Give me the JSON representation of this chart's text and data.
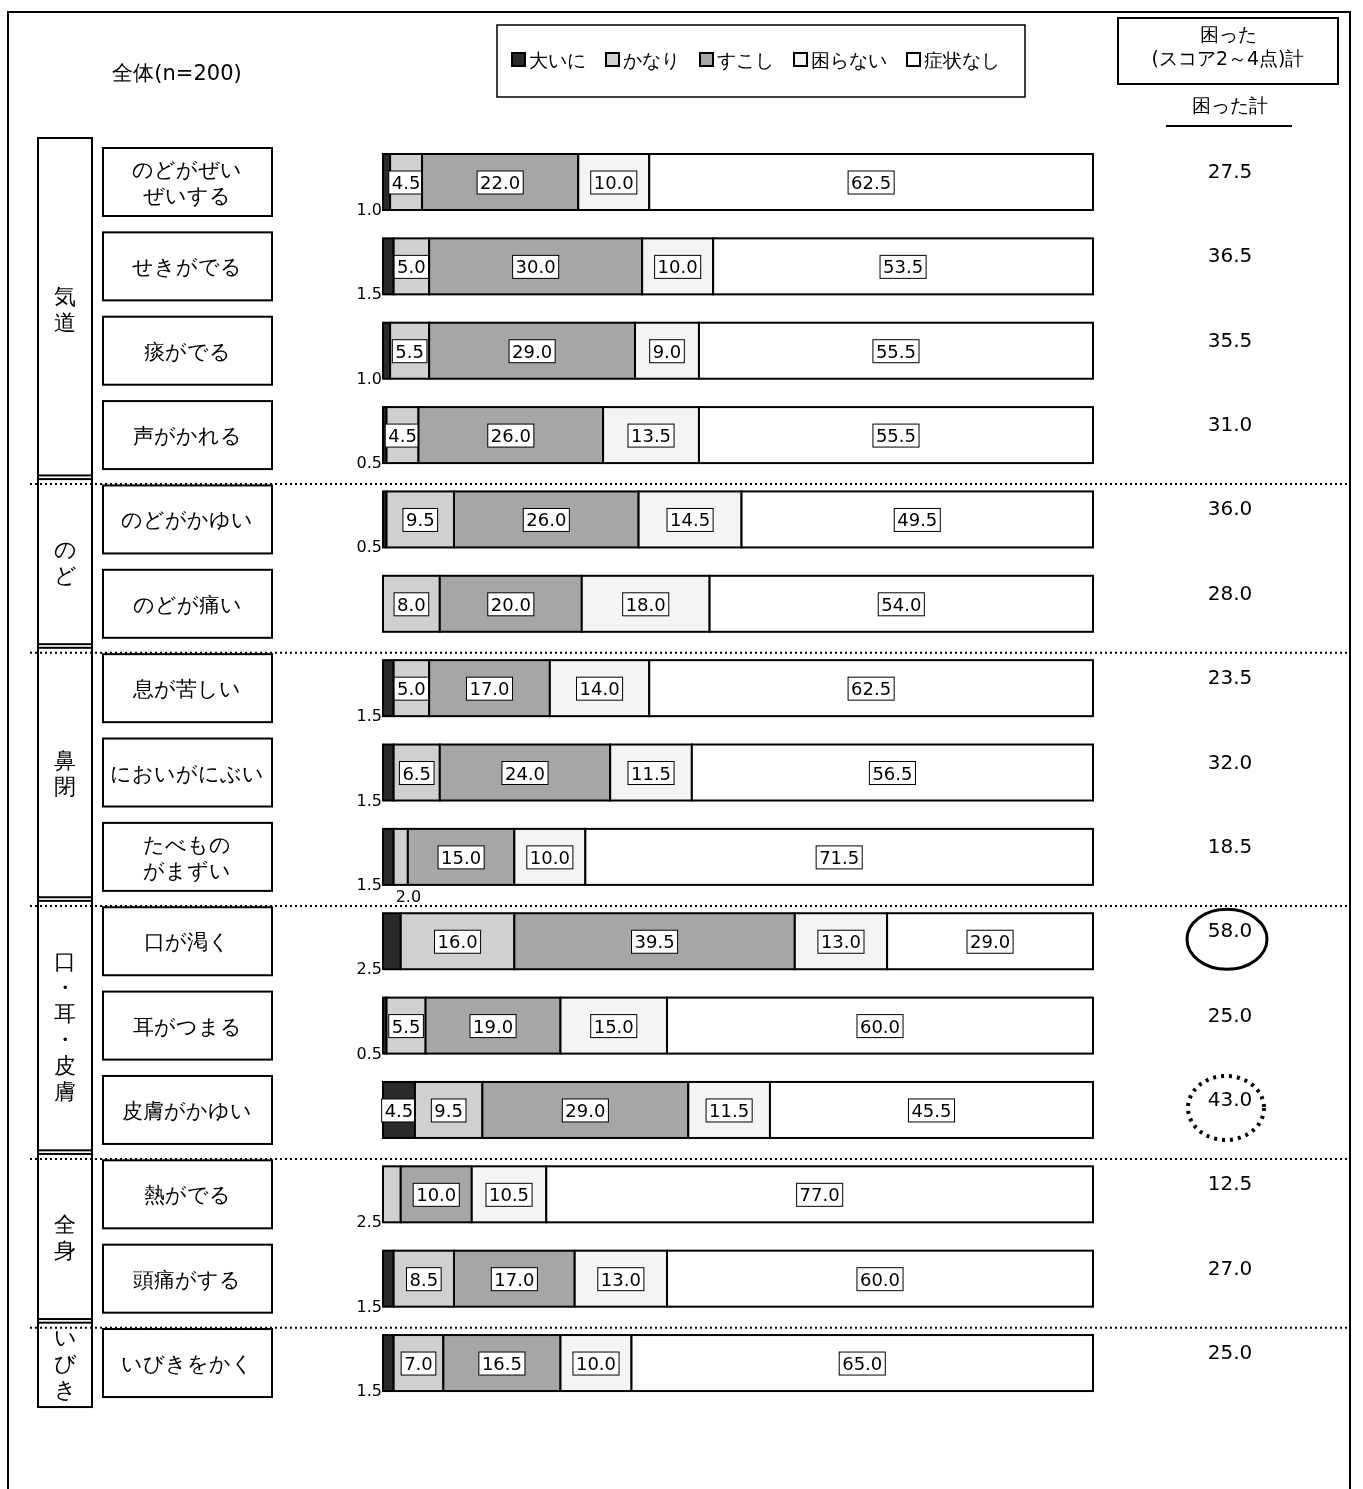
{
  "chart_data": {
    "type": "bar",
    "orientation": "horizontal",
    "stacked": true,
    "subtitle": "全体(n=200)",
    "legend": "top",
    "xlim": [
      0,
      100
    ],
    "categories": [
      "のどがぜいぜいする",
      "せきがでる",
      "痰がでる",
      "声がかれる",
      "のどがかゆい",
      "のどが痛い",
      "息が苦しい",
      "においがにぶい",
      "たべものがまずい",
      "口が渇く",
      "耳がつまる",
      "皮膚がかゆい",
      "熱がでる",
      "頭痛がする",
      "いびきをかく"
    ],
    "series": [
      {
        "name": "大いに",
        "color": "#2a2a2a",
        "values": [
          1.0,
          1.5,
          1.0,
          0.5,
          0.5,
          0,
          1.5,
          1.5,
          1.5,
          2.5,
          0.5,
          4.5,
          0,
          1.5,
          1.5
        ],
        "value_labels": [
          "1.0",
          "1.5",
          "1.0",
          "0.5",
          "0.5",
          null,
          "1.5",
          "1.5",
          "1.5",
          "2.5",
          "0.5",
          "4.5",
          null,
          "1.5",
          "1.5"
        ]
      },
      {
        "name": "かなり",
        "color": "#d0d0d0",
        "values": [
          4.5,
          5.0,
          5.5,
          4.5,
          9.5,
          8.0,
          5.0,
          6.5,
          2.0,
          16.0,
          5.5,
          9.5,
          2.5,
          8.5,
          7.0
        ],
        "value_labels": [
          "4.5",
          "5.0",
          "5.5",
          "4.5",
          "9.5",
          "8.0",
          "5.0",
          "6.5",
          "2.0",
          "16.0",
          "5.5",
          "9.5",
          "2.5",
          "8.5",
          "7.0"
        ]
      },
      {
        "name": "すこし",
        "color": "#a6a6a6",
        "values": [
          22.0,
          30.0,
          29.0,
          26.0,
          26.0,
          20.0,
          17.0,
          24.0,
          15.0,
          39.5,
          19.0,
          29.0,
          10.0,
          17.0,
          16.5
        ],
        "value_labels": [
          "22.0",
          "30.0",
          "29.0",
          "26.0",
          "26.0",
          "20.0",
          "17.0",
          "24.0",
          "15.0",
          "39.5",
          "19.0",
          "29.0",
          "10.0",
          "17.0",
          "16.5"
        ]
      },
      {
        "name": "困らない",
        "color": "#f4f4f4",
        "values": [
          10.0,
          10.0,
          9.0,
          13.5,
          14.5,
          18.0,
          14.0,
          11.5,
          10.0,
          13.0,
          15.0,
          11.5,
          10.5,
          13.0,
          10.0
        ],
        "value_labels": [
          "10.0",
          "10.0",
          "9.0",
          "13.5",
          "14.5",
          "18.0",
          "14.0",
          "11.5",
          "10.0",
          "13.0",
          "15.0",
          "11.5",
          "10.5",
          "13.0",
          "10.0"
        ]
      },
      {
        "name": "症状なし",
        "color": "#ffffff",
        "values": [
          62.5,
          53.5,
          55.5,
          55.5,
          49.5,
          54.0,
          62.5,
          56.5,
          71.5,
          29.0,
          60.0,
          45.5,
          77.0,
          60.0,
          65.0
        ],
        "value_labels": [
          "62.5",
          "53.5",
          "55.5",
          "55.5",
          "49.5",
          "54.0",
          "62.5",
          "56.5",
          "71.5",
          "29.0",
          "60.0",
          "45.5",
          "77.0",
          "60.0",
          "65.0"
        ]
      }
    ],
    "annotations": [
      "困った\n(スコア2～4点)計",
      "困った計",
      "気道",
      "のど",
      "鼻閉",
      "口・耳・皮膚",
      "全身",
      "いびき",
      "27.5",
      "36.5",
      "35.5",
      "31.0",
      "36.0",
      "28.0",
      "23.5",
      "32.0",
      "18.5",
      "58.0",
      "25.0",
      "43.0",
      "12.5",
      "27.0",
      "25.0"
    ]
  }
}
